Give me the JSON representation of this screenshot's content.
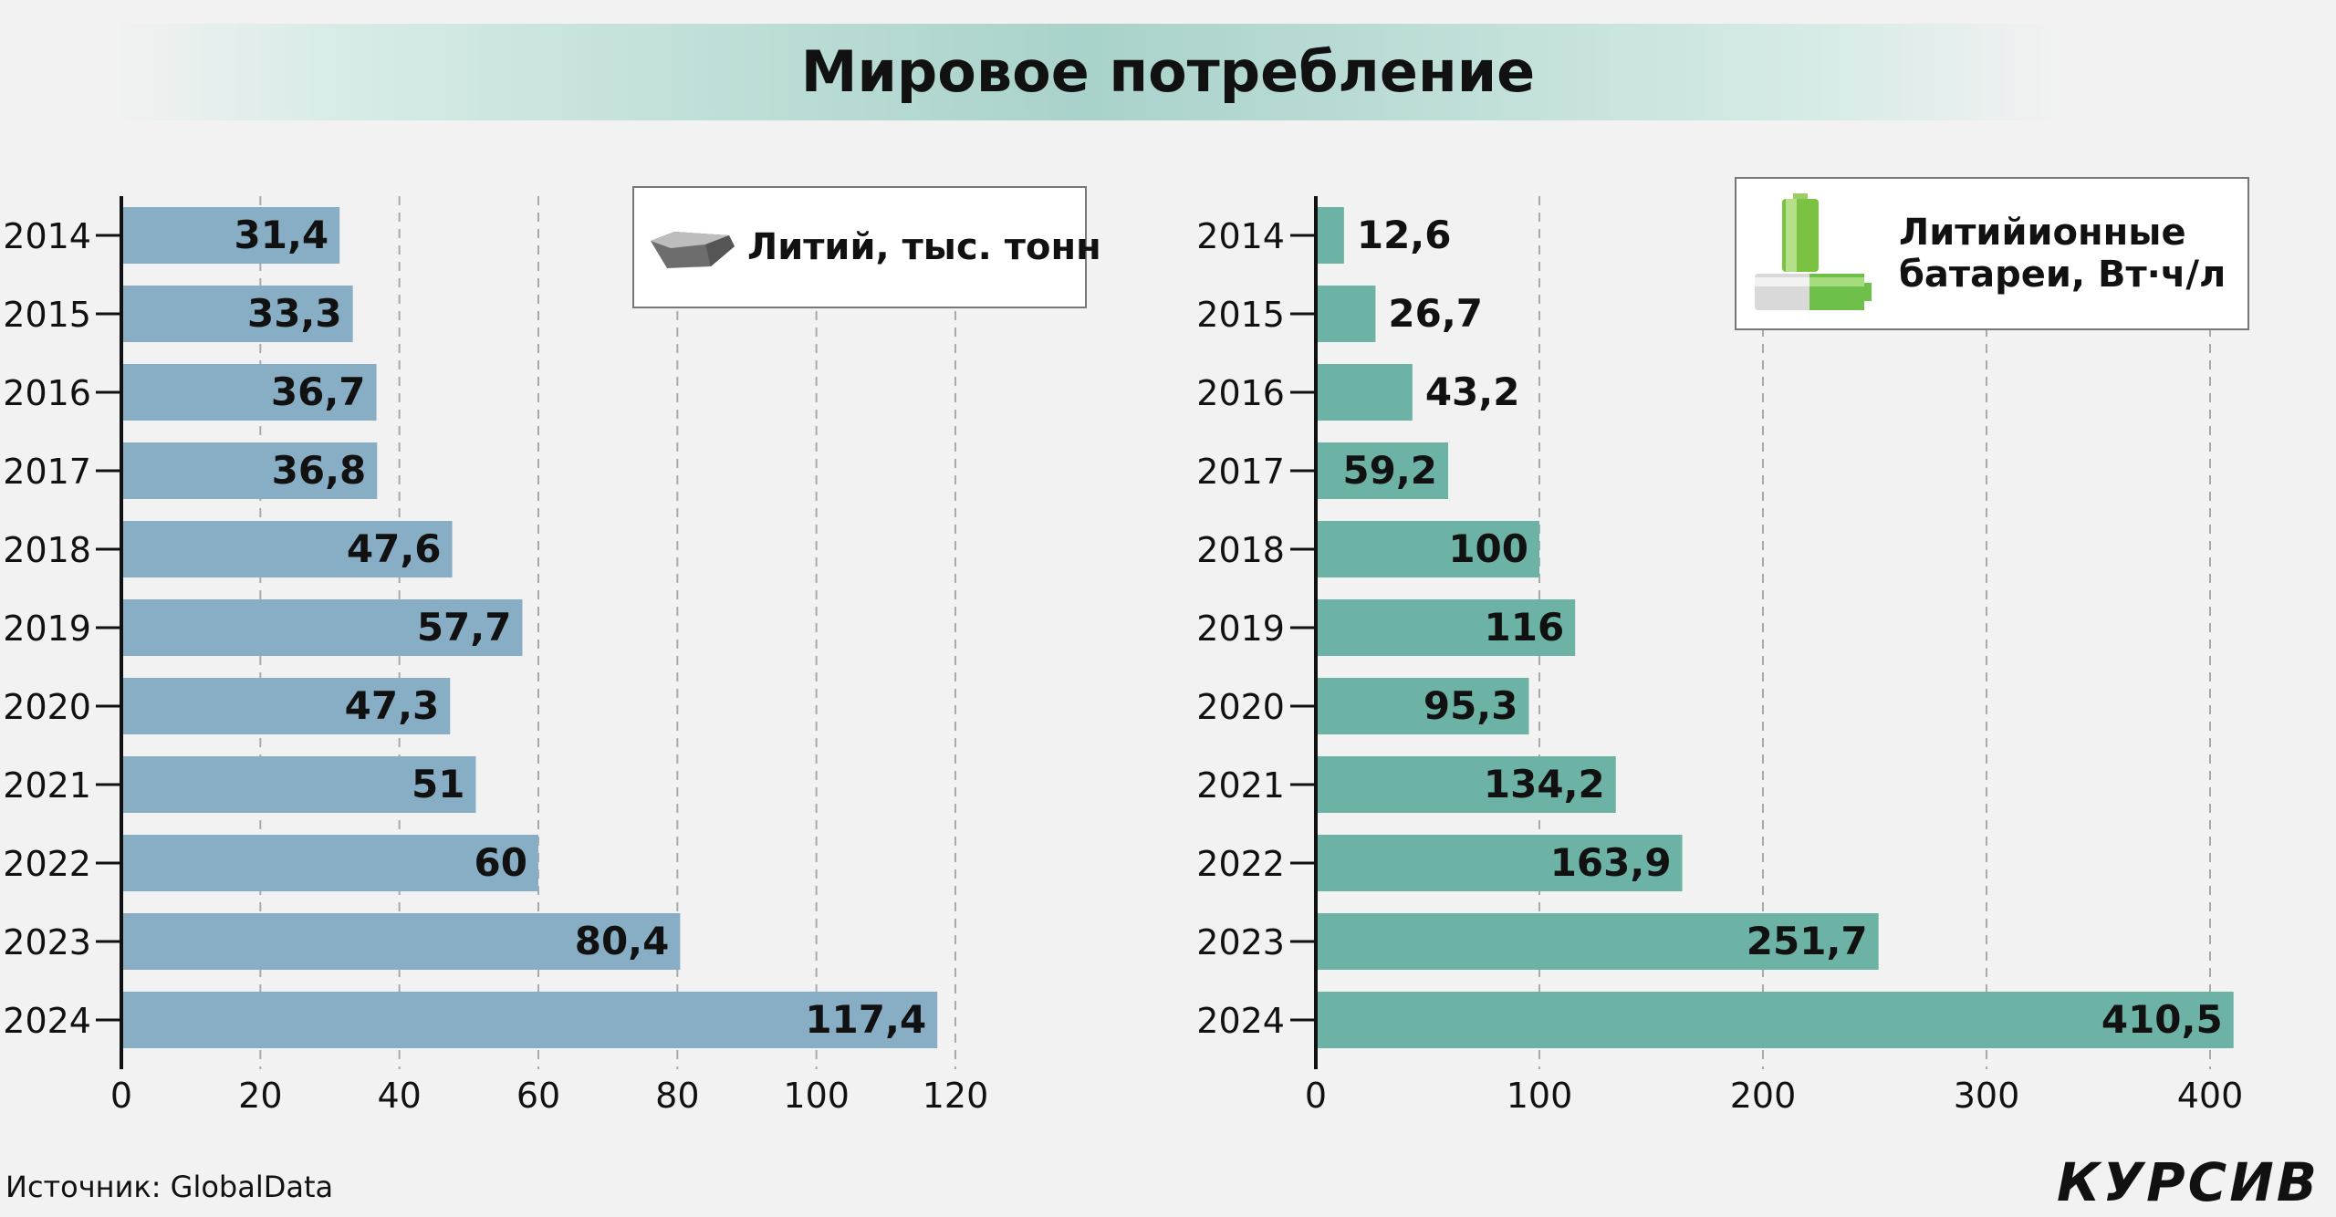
{
  "title": "Мировое потребление",
  "source": "Источник: GlobalData",
  "brand": "КУРСИВ",
  "colors": {
    "lithium_bar": "#87aec4",
    "battery_bar": "#6db3a5",
    "axis": "#111111",
    "grid": "#aaaaaa"
  },
  "chart_data": [
    {
      "type": "bar",
      "orientation": "horizontal",
      "legend_label": "Литий, тыс. тонн",
      "legend_icon": "lithium-ore-icon",
      "legend_position": "top-right",
      "categories": [
        "2014",
        "2015",
        "2016",
        "2017",
        "2018",
        "2019",
        "2020",
        "2021",
        "2022",
        "2023",
        "2024"
      ],
      "values": [
        31.4,
        33.3,
        36.7,
        36.8,
        47.6,
        57.7,
        47.3,
        51,
        60,
        80.4,
        117.4
      ],
      "value_labels": [
        "31,4",
        "33,3",
        "36,7",
        "36,8",
        "47,6",
        "57,7",
        "47,3",
        "51",
        "60",
        "80,4",
        "117,4"
      ],
      "xlim": [
        0,
        120
      ],
      "xticks": [
        0,
        20,
        40,
        60,
        80,
        100,
        120
      ],
      "grid": true
    },
    {
      "type": "bar",
      "orientation": "horizontal",
      "legend_label_lines": [
        "Литийионные",
        "батареи, Вт·ч/л"
      ],
      "legend_icon": "battery-icon",
      "legend_position": "top-right",
      "categories": [
        "2014",
        "2015",
        "2016",
        "2017",
        "2018",
        "2019",
        "2020",
        "2021",
        "2022",
        "2023",
        "2024"
      ],
      "values": [
        12.6,
        26.7,
        43.2,
        59.2,
        100,
        116,
        95.3,
        134.2,
        163.9,
        251.7,
        410.5
      ],
      "value_labels": [
        "12,6",
        "26,7",
        "43,2",
        "59,2",
        "100",
        "116",
        "95,3",
        "134,2",
        "163,9",
        "251,7",
        "410,5"
      ],
      "xlim": [
        0,
        400
      ],
      "xticks": [
        0,
        100,
        200,
        300,
        400
      ],
      "grid": true
    }
  ]
}
